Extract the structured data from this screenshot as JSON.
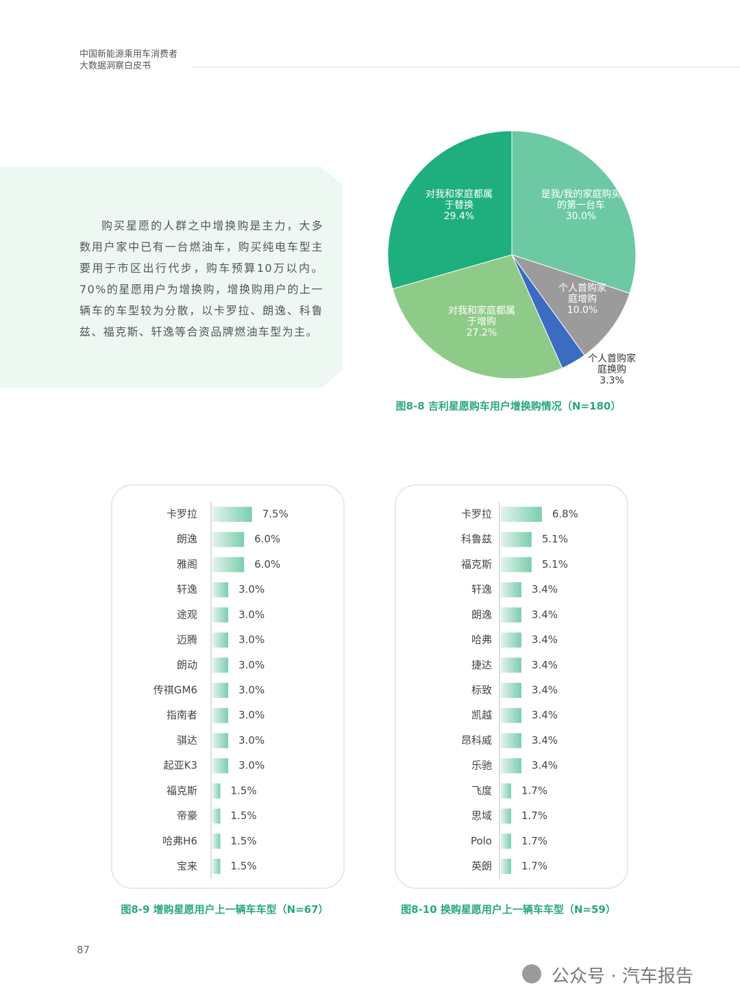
{
  "header": {
    "line1": "中国新能源乘用车消费者",
    "line2": "大数据洞察白皮书"
  },
  "body": {
    "paragraph": "购买星愿的人群之中增换购是主力，大多数用户家中已有一台燃油车，购买纯电车型主要用于市区出行代步，购车预算10万以内。70%的星愿用户为增换购，增换购用户的上一辆车的车型较为分散，以卡罗拉、朗逸、科鲁兹、福克斯、轩逸等合资品牌燃油车型为主。"
  },
  "chart_data": [
    {
      "type": "pie",
      "title": "图8-8 吉利星愿购车用户增换购情况（N=180）",
      "categories": [
        "是我/我的家庭购买的第一台车",
        "个人首购家庭增购",
        "个人首购家庭换购",
        "对我和家庭都属于增购",
        "对我和家庭都属于替换"
      ],
      "values": [
        30.0,
        10.0,
        3.3,
        27.2,
        29.4
      ],
      "value_labels": [
        "30.0%",
        "10.0%",
        "3.3%",
        "27.2%",
        "29.4%"
      ],
      "colors": [
        "#6cc9a4",
        "#9b9b9b",
        "#3b6cc2",
        "#8fcb88",
        "#1faf7e"
      ]
    },
    {
      "type": "bar",
      "title": "图8-9 增购星愿用户上一辆车车型（N=67）",
      "categories": [
        "卡罗拉",
        "朗逸",
        "雅阁",
        "轩逸",
        "途观",
        "迈腾",
        "朗动",
        "传祺GM6",
        "指南者",
        "骐达",
        "起亚K3",
        "福克斯",
        "帝豪",
        "哈弗H6",
        "宝来"
      ],
      "values": [
        7.5,
        6.0,
        6.0,
        3.0,
        3.0,
        3.0,
        3.0,
        3.0,
        3.0,
        3.0,
        3.0,
        1.5,
        1.5,
        1.5,
        1.5
      ],
      "value_labels": [
        "7.5%",
        "6.0%",
        "6.0%",
        "3.0%",
        "3.0%",
        "3.0%",
        "3.0%",
        "3.0%",
        "3.0%",
        "3.0%",
        "3.0%",
        "1.5%",
        "1.5%",
        "1.5%",
        "1.5%"
      ],
      "color": "#7ccdae"
    },
    {
      "type": "bar",
      "title": "图8-10 换购星愿用户上一辆车车型（N=59）",
      "categories": [
        "卡罗拉",
        "科鲁兹",
        "福克斯",
        "轩逸",
        "朗逸",
        "哈弗",
        "捷达",
        "标致",
        "凯越",
        "昂科威",
        "乐驰",
        "飞度",
        "思域",
        "Polo",
        "英朗"
      ],
      "values": [
        6.8,
        5.1,
        5.1,
        3.4,
        3.4,
        3.4,
        3.4,
        3.4,
        3.4,
        3.4,
        3.4,
        1.7,
        1.7,
        1.7,
        1.7
      ],
      "value_labels": [
        "6.8%",
        "5.1%",
        "5.1%",
        "3.4%",
        "3.4%",
        "3.4%",
        "3.4%",
        "3.4%",
        "3.4%",
        "3.4%",
        "3.4%",
        "1.7%",
        "1.7%",
        "1.7%",
        "1.7%"
      ],
      "color": "#7ccdae"
    }
  ],
  "page_number": "87",
  "watermark": "公众号 · 汽车报告"
}
